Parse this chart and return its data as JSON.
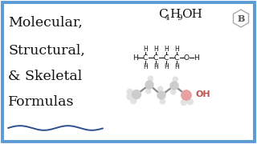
{
  "bg_color": "#ffffff",
  "border_color": "#5b9bd5",
  "title_lines": [
    "Molecular,",
    "Structural,",
    "& Skeletal",
    "Formulas"
  ],
  "title_color": "#111111",
  "title_fontsize": 12.5,
  "wave_color": "#2c4f8f",
  "badge_letter": "B",
  "skeletal_line_color": "#888888",
  "oh_pink": "#e07878",
  "atom_color": "#111111",
  "sphere_main": "#cccccc",
  "sphere_h": "#e2e2e2",
  "oh_sphere": "#e8a0a0"
}
